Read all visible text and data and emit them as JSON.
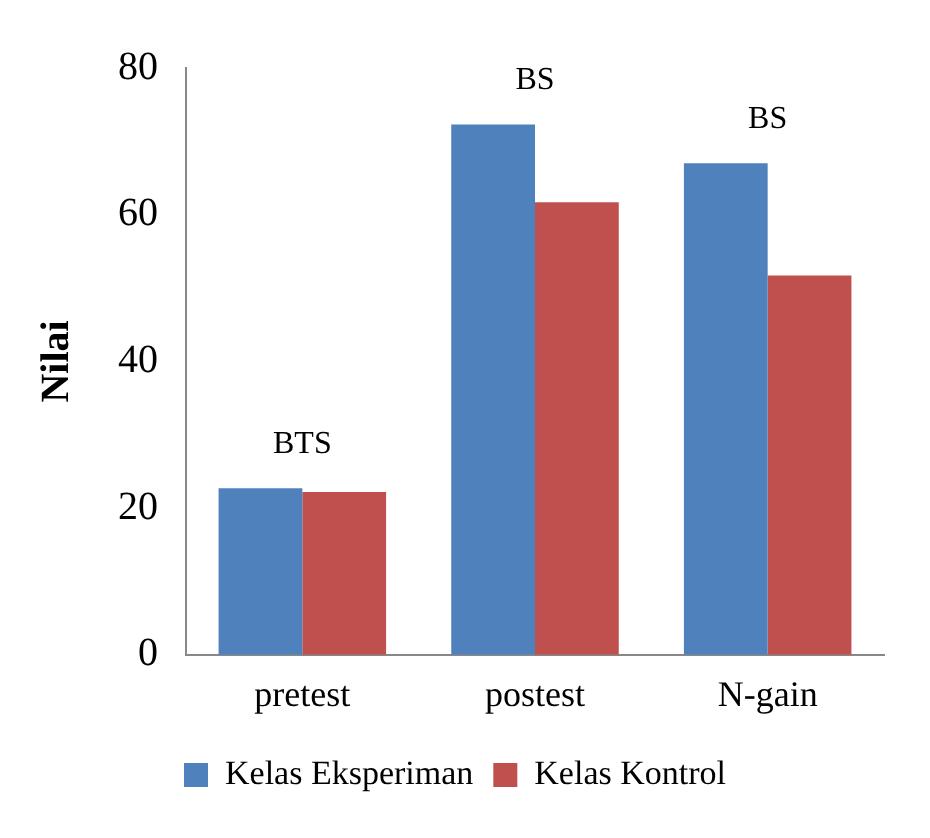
{
  "chart_data": {
    "type": "bar",
    "ylabel": "Nilai",
    "categories": [
      "pretest",
      "postest",
      "N-gain"
    ],
    "series": [
      {
        "name": "Kelas Eksperiman",
        "color": "#4f81bd",
        "values": [
          22.7,
          72.3,
          67.0
        ]
      },
      {
        "name": "Kelas Kontrol",
        "color": "#c0504d",
        "values": [
          22.2,
          61.7,
          51.7
        ]
      }
    ],
    "ylim": [
      0,
      80
    ],
    "yticks": [
      0,
      20,
      40,
      60,
      80
    ],
    "grid": false,
    "legend": "bottom",
    "annotations": [
      "BTS",
      "BS",
      "BS"
    ]
  }
}
